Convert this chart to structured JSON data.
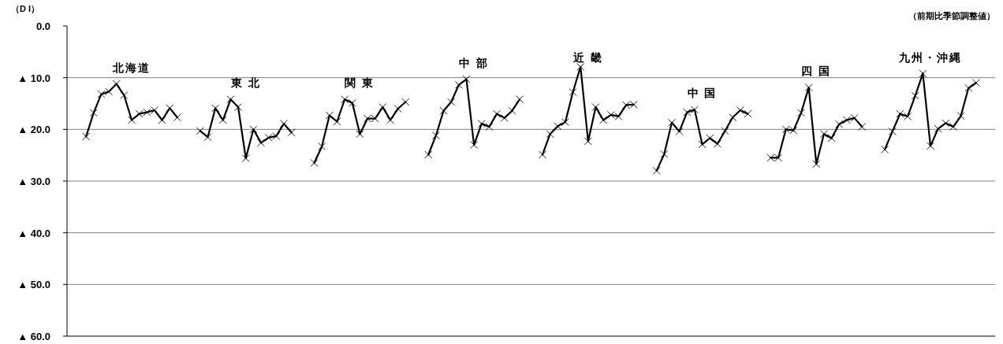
{
  "chart_data": {
    "type": "line",
    "ylabel": "（D I）",
    "subtitle": "（前期比季節調整値）",
    "marker": "cross",
    "grid": "y",
    "legend": false,
    "ylim": [
      -60,
      0
    ],
    "yticks": [
      {
        "value": 0,
        "label": "0.0"
      },
      {
        "value": -10,
        "label": "▲ 10.0"
      },
      {
        "value": -20,
        "label": "▲ 20.0"
      },
      {
        "value": -30,
        "label": "▲ 30.0"
      },
      {
        "value": -40,
        "label": "▲ 40.0"
      },
      {
        "value": -50,
        "label": "▲ 50.0"
      },
      {
        "value": -60,
        "label": "▲ 60.0"
      }
    ],
    "categories": [
      null,
      null,
      null,
      null,
      null,
      null,
      null,
      null,
      null,
      null,
      null,
      null,
      null,
      null,
      null,
      null,
      null,
      null,
      null,
      null,
      null,
      null,
      null,
      null,
      null,
      null,
      null,
      null,
      null,
      null,
      null,
      null,
      null,
      null,
      null,
      null,
      null,
      null,
      null,
      null,
      null,
      null,
      null,
      null,
      null,
      null,
      null,
      null,
      null,
      null,
      null,
      null,
      null,
      null,
      null,
      null,
      null,
      null,
      null,
      null,
      null,
      null,
      null,
      null,
      null,
      null,
      null,
      null,
      null,
      null,
      null,
      null,
      null,
      null,
      null,
      null,
      null,
      null,
      null,
      null,
      null,
      null,
      null,
      null,
      null,
      null,
      null,
      null,
      null,
      null,
      null,
      null,
      null,
      null,
      null,
      null,
      null,
      null,
      null,
      null,
      null,
      null,
      null,
      null,
      null,
      null,
      null,
      null,
      null,
      null,
      null,
      null,
      null,
      null,
      null,
      null,
      null,
      null,
      null,
      null,
      null,
      null
    ],
    "series": [
      {
        "name": "北海道",
        "color": "#000000",
        "values": [
          null,
          null,
          -21.4,
          -16.8,
          -13.2,
          -12.7,
          -11.2,
          -13.4,
          -18.2,
          -17.0,
          -16.7,
          -16.3,
          -18.2,
          -15.9,
          -17.7,
          null,
          null,
          null,
          null,
          null,
          null,
          null,
          null,
          null,
          null,
          null,
          null,
          null,
          null,
          null,
          null,
          null,
          null,
          null,
          null,
          null,
          null,
          null,
          null,
          null,
          null,
          null,
          null,
          null,
          null,
          null,
          null,
          null,
          null,
          null,
          null,
          null,
          null,
          null,
          null,
          null,
          null,
          null,
          null,
          null,
          null,
          null,
          null,
          null,
          null,
          null,
          null,
          null,
          null,
          null,
          null,
          null,
          null,
          null,
          null,
          null,
          null,
          null,
          null,
          null,
          null,
          null,
          null,
          null,
          null,
          null,
          null,
          null,
          null,
          null,
          null,
          null,
          null,
          null,
          null,
          null,
          null,
          null,
          null,
          null,
          null,
          null,
          null,
          null,
          null,
          null,
          null,
          null,
          null,
          null,
          null,
          null,
          null,
          null,
          null,
          null,
          null,
          null,
          null,
          null,
          null,
          null
        ]
      },
      {
        "name": "東 北",
        "color": "#000000",
        "values": [
          null,
          null,
          null,
          null,
          null,
          null,
          null,
          null,
          null,
          null,
          null,
          null,
          null,
          null,
          null,
          null,
          null,
          -20.3,
          -21.5,
          -15.9,
          -18.2,
          -14.2,
          -15.7,
          -25.6,
          -20.0,
          -22.6,
          -21.6,
          -21.3,
          -18.9,
          -20.6,
          null,
          null,
          null,
          null,
          null,
          null,
          null,
          null,
          null,
          null,
          null,
          null,
          null,
          null,
          null,
          null,
          null,
          null,
          null,
          null,
          null,
          null,
          null,
          null,
          null,
          null,
          null,
          null,
          null,
          null,
          null,
          null,
          null,
          null,
          null,
          null,
          null,
          null,
          null,
          null,
          null,
          null,
          null,
          null,
          null,
          null,
          null,
          null,
          null,
          null,
          null,
          null,
          null,
          null,
          null,
          null,
          null,
          null,
          null,
          null,
          null,
          null,
          null,
          null,
          null,
          null,
          null,
          null,
          null,
          null,
          null,
          null,
          null,
          null,
          null,
          null,
          null,
          null,
          null,
          null,
          null,
          null,
          null,
          null,
          null,
          null,
          null,
          null,
          null,
          null,
          null,
          null
        ]
      },
      {
        "name": "関 東",
        "color": "#000000",
        "values": [
          null,
          null,
          null,
          null,
          null,
          null,
          null,
          null,
          null,
          null,
          null,
          null,
          null,
          null,
          null,
          null,
          null,
          null,
          null,
          null,
          null,
          null,
          null,
          null,
          null,
          null,
          null,
          null,
          null,
          null,
          null,
          null,
          -26.5,
          -23.3,
          -17.3,
          -18.5,
          -14.2,
          -14.9,
          -20.9,
          -17.9,
          -17.9,
          -15.7,
          -18.2,
          -16.0,
          -14.7,
          null,
          null,
          null,
          null,
          null,
          null,
          null,
          null,
          null,
          null,
          null,
          null,
          null,
          null,
          null,
          null,
          null,
          null,
          null,
          null,
          null,
          null,
          null,
          null,
          null,
          null,
          null,
          null,
          null,
          null,
          null,
          null,
          null,
          null,
          null,
          null,
          null,
          null,
          null,
          null,
          null,
          null,
          null,
          null,
          null,
          null,
          null,
          null,
          null,
          null,
          null,
          null,
          null,
          null,
          null,
          null,
          null,
          null,
          null,
          null,
          null,
          null,
          null,
          null,
          null,
          null,
          null,
          null,
          null,
          null,
          null,
          null,
          null,
          null,
          null,
          null,
          null
        ]
      },
      {
        "name": "中 部",
        "color": "#000000",
        "values": [
          null,
          null,
          null,
          null,
          null,
          null,
          null,
          null,
          null,
          null,
          null,
          null,
          null,
          null,
          null,
          null,
          null,
          null,
          null,
          null,
          null,
          null,
          null,
          null,
          null,
          null,
          null,
          null,
          null,
          null,
          null,
          null,
          null,
          null,
          null,
          null,
          null,
          null,
          null,
          null,
          null,
          null,
          null,
          null,
          null,
          null,
          null,
          -24.9,
          -21.2,
          -16.4,
          -14.7,
          -11.4,
          -10.3,
          -23.0,
          -18.9,
          -19.5,
          -17.0,
          -17.8,
          -16.4,
          -14.2,
          null,
          null,
          null,
          null,
          null,
          null,
          null,
          null,
          null,
          null,
          null,
          null,
          null,
          null,
          null,
          null,
          null,
          null,
          null,
          null,
          null,
          null,
          null,
          null,
          null,
          null,
          null,
          null,
          null,
          null,
          null,
          null,
          null,
          null,
          null,
          null,
          null,
          null,
          null,
          null,
          null,
          null,
          null,
          null,
          null,
          null,
          null,
          null,
          null,
          null,
          null,
          null,
          null,
          null,
          null,
          null,
          null,
          null,
          null,
          null,
          null,
          null
        ]
      },
      {
        "name": "近 畿",
        "color": "#000000",
        "values": [
          null,
          null,
          null,
          null,
          null,
          null,
          null,
          null,
          null,
          null,
          null,
          null,
          null,
          null,
          null,
          null,
          null,
          null,
          null,
          null,
          null,
          null,
          null,
          null,
          null,
          null,
          null,
          null,
          null,
          null,
          null,
          null,
          null,
          null,
          null,
          null,
          null,
          null,
          null,
          null,
          null,
          null,
          null,
          null,
          null,
          null,
          null,
          null,
          null,
          null,
          null,
          null,
          null,
          null,
          null,
          null,
          null,
          null,
          null,
          null,
          null,
          null,
          -24.9,
          -20.9,
          -19.4,
          -18.6,
          -12.8,
          -7.9,
          -22.3,
          -15.7,
          -18.2,
          -17.2,
          -17.5,
          -15.3,
          -15.2,
          null,
          null,
          null,
          null,
          null,
          null,
          null,
          null,
          null,
          null,
          null,
          null,
          null,
          null,
          null,
          null,
          null,
          null,
          null,
          null,
          null,
          null,
          null,
          null,
          null,
          null,
          null,
          null,
          null,
          null,
          null,
          null,
          null,
          null,
          null,
          null,
          null,
          null,
          null,
          null,
          null,
          null,
          null,
          null,
          null,
          null,
          null
        ]
      },
      {
        "name": "中 国",
        "color": "#000000",
        "values": [
          null,
          null,
          null,
          null,
          null,
          null,
          null,
          null,
          null,
          null,
          null,
          null,
          null,
          null,
          null,
          null,
          null,
          null,
          null,
          null,
          null,
          null,
          null,
          null,
          null,
          null,
          null,
          null,
          null,
          null,
          null,
          null,
          null,
          null,
          null,
          null,
          null,
          null,
          null,
          null,
          null,
          null,
          null,
          null,
          null,
          null,
          null,
          null,
          null,
          null,
          null,
          null,
          null,
          null,
          null,
          null,
          null,
          null,
          null,
          null,
          null,
          null,
          null,
          null,
          null,
          null,
          null,
          null,
          null,
          null,
          null,
          null,
          null,
          null,
          null,
          null,
          null,
          -28.0,
          -24.8,
          -18.7,
          -20.4,
          -16.7,
          -16.2,
          -22.9,
          -21.7,
          -22.8,
          -20.3,
          -17.7,
          -16.3,
          -17.0,
          null,
          null,
          null,
          null,
          null,
          null,
          null,
          null,
          null,
          null,
          null,
          null,
          null,
          null,
          null,
          null,
          null,
          null,
          null,
          null,
          null,
          null,
          null,
          null,
          null,
          null,
          null,
          null,
          null,
          null,
          null,
          null
        ]
      },
      {
        "name": "四 国",
        "color": "#000000",
        "values": [
          null,
          null,
          null,
          null,
          null,
          null,
          null,
          null,
          null,
          null,
          null,
          null,
          null,
          null,
          null,
          null,
          null,
          null,
          null,
          null,
          null,
          null,
          null,
          null,
          null,
          null,
          null,
          null,
          null,
          null,
          null,
          null,
          null,
          null,
          null,
          null,
          null,
          null,
          null,
          null,
          null,
          null,
          null,
          null,
          null,
          null,
          null,
          null,
          null,
          null,
          null,
          null,
          null,
          null,
          null,
          null,
          null,
          null,
          null,
          null,
          null,
          null,
          null,
          null,
          null,
          null,
          null,
          null,
          null,
          null,
          null,
          null,
          null,
          null,
          null,
          null,
          null,
          null,
          null,
          null,
          null,
          null,
          null,
          null,
          null,
          null,
          null,
          null,
          null,
          null,
          null,
          null,
          -25.5,
          -25.5,
          -20.0,
          -20.2,
          -16.8,
          -11.9,
          -26.7,
          -20.9,
          -21.7,
          -19.0,
          -18.2,
          -17.8,
          -19.5,
          null,
          null,
          null,
          null,
          null,
          null,
          null,
          null,
          null,
          null,
          null,
          null,
          null,
          null,
          null,
          null,
          null
        ]
      },
      {
        "name": "九州・沖縄",
        "color": "#000000",
        "values": [
          null,
          null,
          null,
          null,
          null,
          null,
          null,
          null,
          null,
          null,
          null,
          null,
          null,
          null,
          null,
          null,
          null,
          null,
          null,
          null,
          null,
          null,
          null,
          null,
          null,
          null,
          null,
          null,
          null,
          null,
          null,
          null,
          null,
          null,
          null,
          null,
          null,
          null,
          null,
          null,
          null,
          null,
          null,
          null,
          null,
          null,
          null,
          null,
          null,
          null,
          null,
          null,
          null,
          null,
          null,
          null,
          null,
          null,
          null,
          null,
          null,
          null,
          null,
          null,
          null,
          null,
          null,
          null,
          null,
          null,
          null,
          null,
          null,
          null,
          null,
          null,
          null,
          null,
          null,
          null,
          null,
          null,
          null,
          null,
          null,
          null,
          null,
          null,
          null,
          null,
          null,
          null,
          null,
          null,
          null,
          null,
          null,
          null,
          null,
          null,
          null,
          null,
          null,
          null,
          null,
          null,
          null,
          -23.9,
          -20.4,
          -17.0,
          -17.5,
          -13.5,
          -9.2,
          -23.2,
          -19.9,
          -18.8,
          -19.5,
          -17.4,
          -12.0,
          -11.0,
          null,
          null
        ]
      }
    ]
  }
}
